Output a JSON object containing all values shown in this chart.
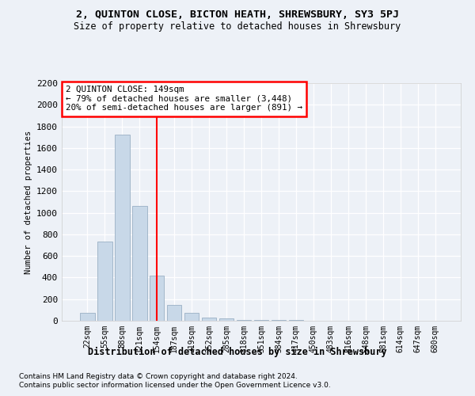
{
  "title1": "2, QUINTON CLOSE, BICTON HEATH, SHREWSBURY, SY3 5PJ",
  "title2": "Size of property relative to detached houses in Shrewsbury",
  "xlabel": "Distribution of detached houses by size in Shrewsbury",
  "ylabel": "Number of detached properties",
  "categories": [
    "22sqm",
    "55sqm",
    "88sqm",
    "121sqm",
    "154sqm",
    "187sqm",
    "219sqm",
    "252sqm",
    "285sqm",
    "318sqm",
    "351sqm",
    "384sqm",
    "417sqm",
    "450sqm",
    "483sqm",
    "516sqm",
    "548sqm",
    "581sqm",
    "614sqm",
    "647sqm",
    "680sqm"
  ],
  "bar_values": [
    75,
    730,
    1720,
    1060,
    420,
    150,
    75,
    30,
    20,
    10,
    8,
    5,
    4,
    3,
    2,
    2,
    1,
    1,
    0,
    0,
    0
  ],
  "bar_color": "#c8d8e8",
  "bar_edge_color": "#9ab0c4",
  "vline_x_index": 4,
  "vline_color": "red",
  "annotation_line1": "2 QUINTON CLOSE: 149sqm",
  "annotation_line2": "← 79% of detached houses are smaller (3,448)",
  "annotation_line3": "20% of semi-detached houses are larger (891) →",
  "ylim": [
    0,
    2200
  ],
  "yticks": [
    0,
    200,
    400,
    600,
    800,
    1000,
    1200,
    1400,
    1600,
    1800,
    2000,
    2200
  ],
  "footnote1": "Contains HM Land Registry data © Crown copyright and database right 2024.",
  "footnote2": "Contains public sector information licensed under the Open Government Licence v3.0.",
  "bg_color": "#edf1f7",
  "grid_color": "#ffffff"
}
